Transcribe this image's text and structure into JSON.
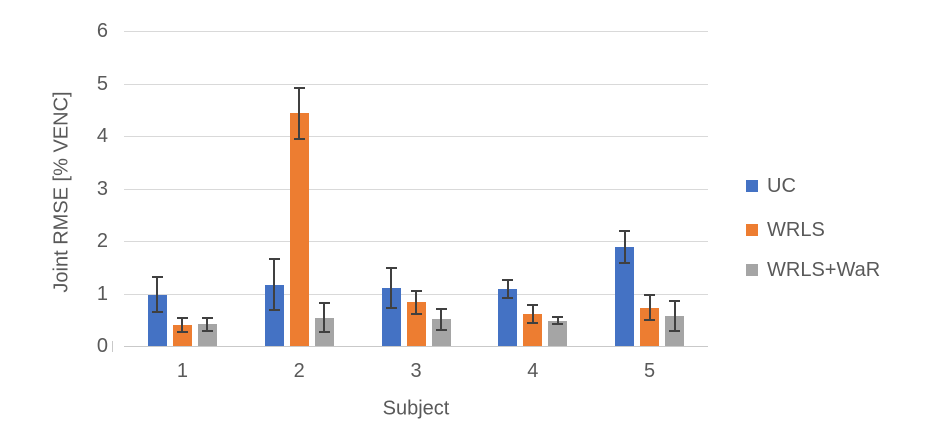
{
  "chart_data": {
    "type": "bar",
    "xlabel": "Subject",
    "ylabel": "Joint RMSE [% VENC]",
    "categories": [
      "1",
      "2",
      "3",
      "4",
      "5"
    ],
    "series": [
      {
        "name": "UC",
        "color": "#4472C4",
        "values": [
          0.98,
          1.17,
          1.1,
          1.08,
          1.89
        ],
        "errors": [
          0.33,
          0.49,
          0.38,
          0.17,
          0.3
        ]
      },
      {
        "name": "WRLS",
        "color": "#ED7D31",
        "values": [
          0.4,
          4.43,
          0.83,
          0.61,
          0.73
        ],
        "errors": [
          0.13,
          0.49,
          0.22,
          0.17,
          0.24
        ]
      },
      {
        "name": "WRLS+WaR",
        "color": "#A5A5A5",
        "values": [
          0.41,
          0.54,
          0.51,
          0.48,
          0.57
        ],
        "errors": [
          0.12,
          0.27,
          0.2,
          0.07,
          0.28
        ]
      }
    ],
    "ylim": [
      0,
      6
    ],
    "ytick_interval": 1,
    "yticks": [
      "0",
      "1",
      "2",
      "3",
      "4",
      "5",
      "6"
    ],
    "grid": "horizontal",
    "legend_position": "right",
    "error_bars": true
  },
  "palette": {
    "background": "#FFFFFF",
    "gridline": "#D9D9D9",
    "axis_line": "#C9C9C9",
    "axis_text": "#595959",
    "error_bar": "#404040"
  }
}
